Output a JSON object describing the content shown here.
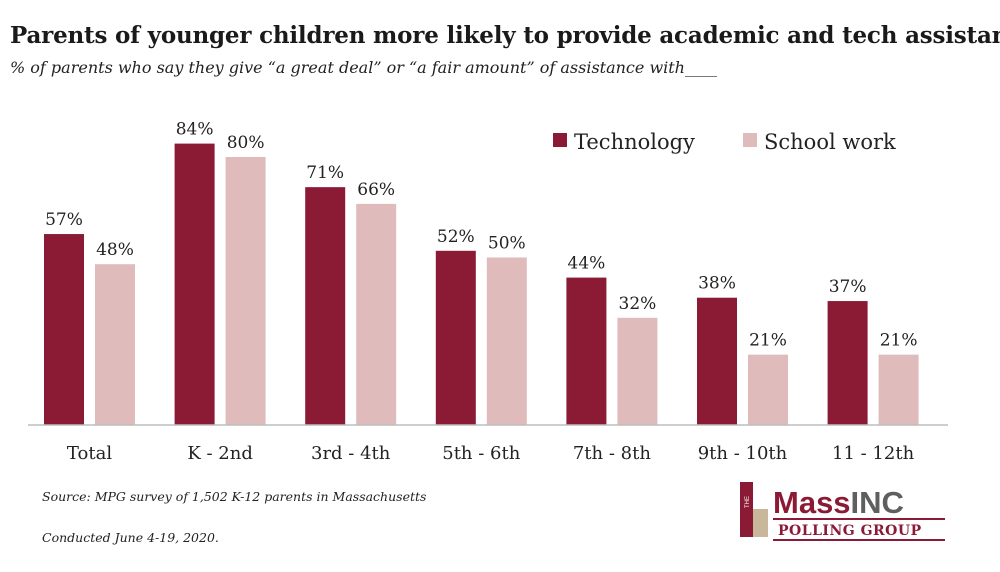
{
  "title": "Parents of younger children more likely to provide academic and tech assistance",
  "subtitle": "% of parents who say they give “a great deal” or “a fair amount” of assistance with____",
  "source": "Source: MPG survey of 1,502 K-12 parents in Massachusetts",
  "conducted": "Conducted June 4-19, 2020.",
  "logo": {
    "side_text": "THE",
    "word_a": "Mass",
    "word_b": "INC",
    "sub": "POLLING GROUP",
    "colors": {
      "dark": "#8b1a35",
      "gray": "#5f5f5f",
      "tan": "#c9b79c"
    }
  },
  "colors": {
    "technology": "#8b1a35",
    "school_work": "#dfbbbb"
  },
  "chart_data": {
    "type": "bar",
    "categories": [
      "Total",
      "K - 2nd",
      "3rd - 4th",
      "5th - 6th",
      "7th - 8th",
      "9th - 10th",
      "11 - 12th"
    ],
    "series": [
      {
        "name": "Technology",
        "values": [
          57,
          84,
          71,
          52,
          44,
          38,
          37
        ],
        "labels": [
          "57%",
          "84%",
          "71%",
          "52%",
          "44%",
          "38%",
          "37%"
        ]
      },
      {
        "name": "School work",
        "values": [
          48,
          80,
          66,
          50,
          32,
          21,
          21
        ],
        "labels": [
          "48%",
          "80%",
          "66%",
          "50%",
          "32%",
          "21%",
          "21%"
        ]
      }
    ],
    "ylim": [
      0,
      100
    ],
    "legend": "top-right",
    "grid": false
  }
}
